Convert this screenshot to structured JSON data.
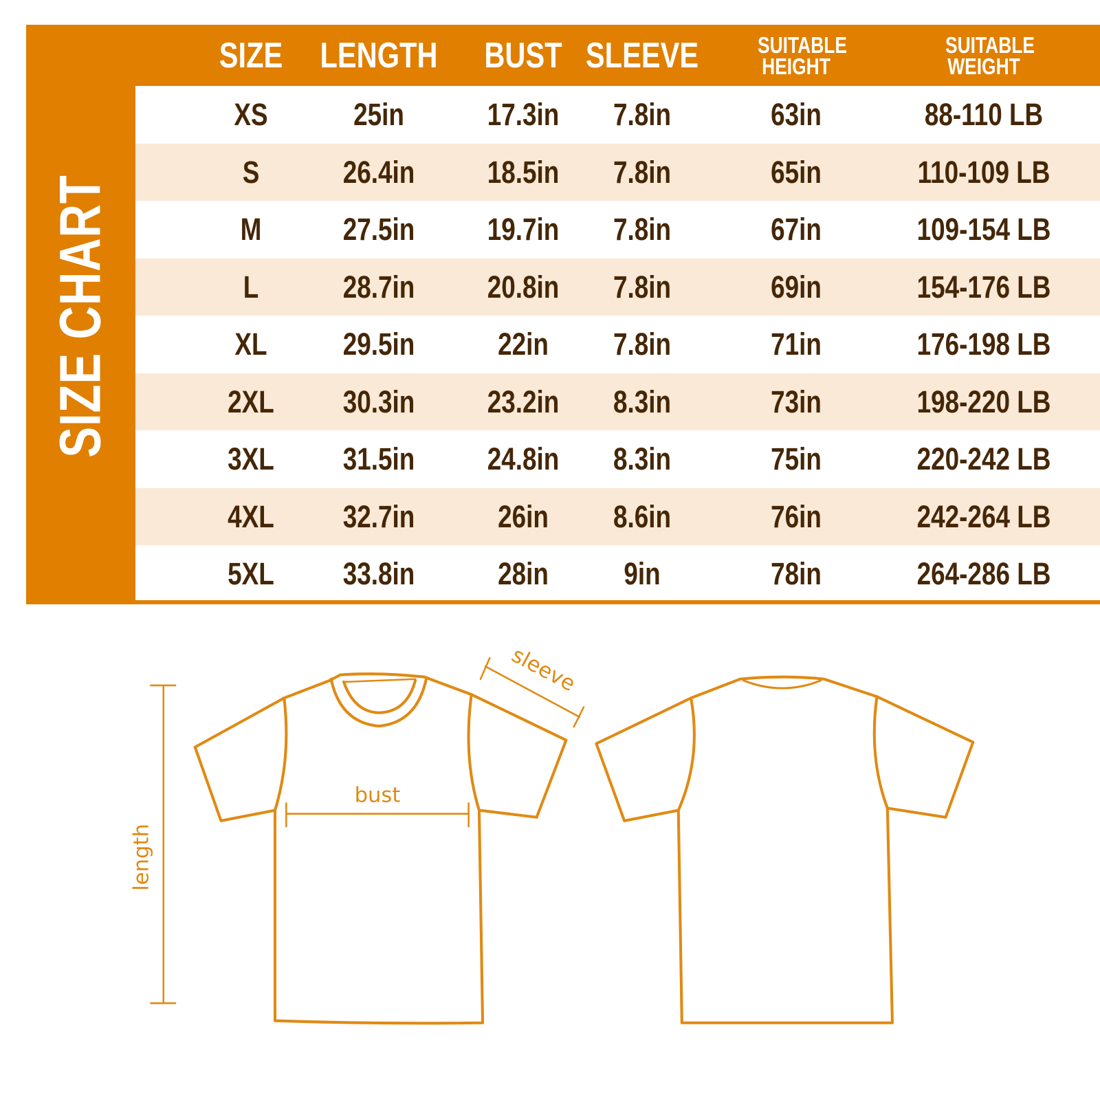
{
  "title": "SIZE CHART",
  "colors": {
    "accent": "#e07f00",
    "row_alt": "#f9e9d6",
    "text": "#452708",
    "line": "#e08a14"
  },
  "headers": [
    "SIZE",
    "LENGTH",
    "BUST",
    "SLEEVE",
    "SUITABLE HEIGHT",
    "SUITABLE WEIGHT"
  ],
  "rows": [
    [
      "XS",
      "25in",
      "17.3in",
      "7.8in",
      "63in",
      "88-110 LB"
    ],
    [
      "S",
      "26.4in",
      "18.5in",
      "7.8in",
      "65in",
      "110-109 LB"
    ],
    [
      "M",
      "27.5in",
      "19.7in",
      "7.8in",
      "67in",
      "109-154 LB"
    ],
    [
      "L",
      "28.7in",
      "20.8in",
      "7.8in",
      "69in",
      "154-176 LB"
    ],
    [
      "XL",
      "29.5in",
      "22in",
      "7.8in",
      "71in",
      "176-198 LB"
    ],
    [
      "2XL",
      "30.3in",
      "23.2in",
      "8.3in",
      "73in",
      "198-220 LB"
    ],
    [
      "3XL",
      "31.5in",
      "24.8in",
      "8.3in",
      "75in",
      "220-242 LB"
    ],
    [
      "4XL",
      "32.7in",
      "26in",
      "8.6in",
      "76in",
      "242-264 LB"
    ],
    [
      "5XL",
      "33.8in",
      "28in",
      "9in",
      "78in",
      "264-286 LB"
    ]
  ],
  "diagram": {
    "bust_label": "bust",
    "length_label": "length",
    "sleeve_label": "sleeve"
  }
}
